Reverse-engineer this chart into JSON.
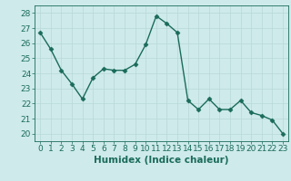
{
  "x": [
    0,
    1,
    2,
    3,
    4,
    5,
    6,
    7,
    8,
    9,
    10,
    11,
    12,
    13,
    14,
    15,
    16,
    17,
    18,
    19,
    20,
    21,
    22,
    23
  ],
  "y": [
    26.7,
    25.6,
    24.2,
    23.3,
    22.3,
    23.7,
    24.3,
    24.2,
    24.2,
    24.6,
    25.9,
    27.8,
    27.3,
    26.7,
    22.2,
    21.6,
    22.3,
    21.6,
    21.6,
    22.2,
    21.4,
    21.2,
    20.9,
    20.0
  ],
  "line_color": "#1a6b5a",
  "marker": "D",
  "markersize": 2.5,
  "linewidth": 1.0,
  "xlabel": "Humidex (Indice chaleur)",
  "xlim": [
    -0.5,
    23.5
  ],
  "ylim": [
    19.5,
    28.5
  ],
  "yticks": [
    20,
    21,
    22,
    23,
    24,
    25,
    26,
    27,
    28
  ],
  "xticks": [
    0,
    1,
    2,
    3,
    4,
    5,
    6,
    7,
    8,
    9,
    10,
    11,
    12,
    13,
    14,
    15,
    16,
    17,
    18,
    19,
    20,
    21,
    22,
    23
  ],
  "bg_color": "#ceeaea",
  "grid_color_major": "#b8d8d8",
  "grid_color_minor": "#c8e4e4",
  "tick_color": "#1a6b5a",
  "label_color": "#1a6b5a",
  "font_size": 6.5,
  "xlabel_fontsize": 7.5
}
